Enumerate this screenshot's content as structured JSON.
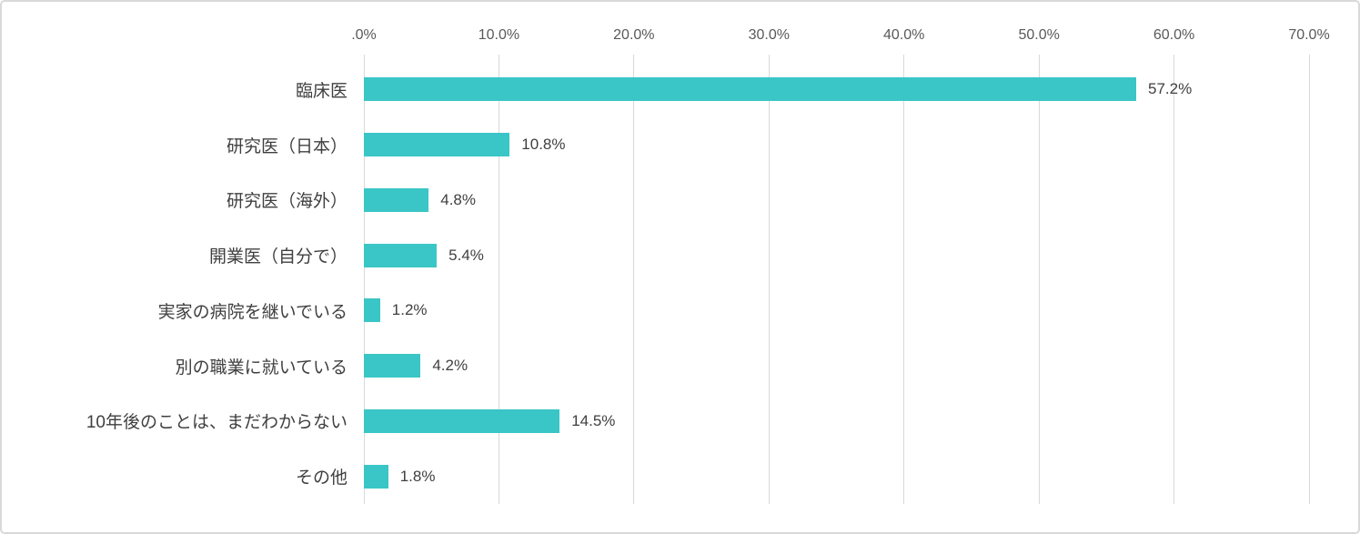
{
  "chart_data": {
    "type": "bar",
    "orientation": "horizontal",
    "title": "",
    "xlabel": "",
    "ylabel": "",
    "categories": [
      "臨床医",
      "研究医（日本）",
      "研究医（海外）",
      "開業医（自分で）",
      "実家の病院を継いでいる",
      "別の職業に就いている",
      "10年後のことは、まだわからない",
      "その他"
    ],
    "values": [
      57.2,
      10.8,
      4.8,
      5.4,
      1.2,
      4.2,
      14.5,
      1.8
    ],
    "value_labels": [
      "57.2%",
      "10.8%",
      "4.8%",
      "5.4%",
      "1.2%",
      "4.2%",
      "14.5%",
      "1.8%"
    ],
    "x_axis": {
      "position": "top",
      "min": 0,
      "max": 70,
      "tick_values": [
        0,
        10,
        20,
        30,
        40,
        50,
        60,
        70
      ],
      "tick_labels": [
        ".0%",
        "10.0%",
        "20.0%",
        "30.0%",
        "40.0%",
        "50.0%",
        "60.0%",
        "70.0%"
      ]
    },
    "grid": true,
    "legend_position": "none",
    "colors": {
      "bar": "#3ac6c6",
      "gridline": "#d9d9d9",
      "axis_text": "#595959",
      "label_text": "#3f3f3f",
      "frame_border": "#d9d9d9",
      "background": "#ffffff"
    }
  }
}
